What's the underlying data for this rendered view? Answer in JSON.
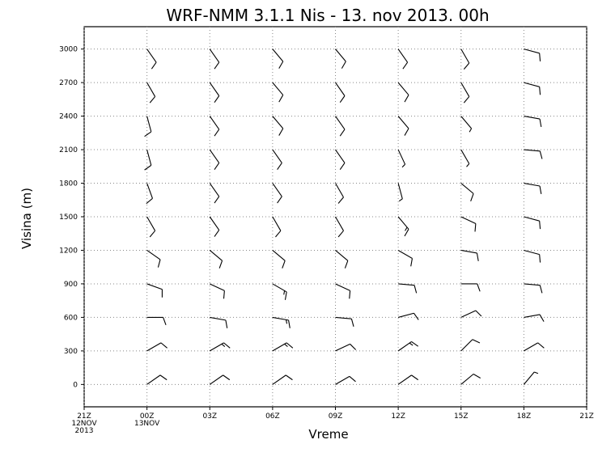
{
  "chart_data": {
    "type": "barb",
    "title": "WRF-NMM 3.1.1 Nis - 13. nov 2013. 00h",
    "x_label": "Vreme",
    "y_label": "Visina (m)",
    "xlim": [
      -3,
      21
    ],
    "ylim": [
      -200,
      3200
    ],
    "xticks": [
      {
        "value": -3,
        "label": "21Z\n12NOV\n2013"
      },
      {
        "value": 0,
        "label": "00Z\n13NOV"
      },
      {
        "value": 3,
        "label": "03Z"
      },
      {
        "value": 6,
        "label": "06Z"
      },
      {
        "value": 9,
        "label": "09Z"
      },
      {
        "value": 12,
        "label": "12Z"
      },
      {
        "value": 15,
        "label": "15Z"
      },
      {
        "value": 18,
        "label": "18Z"
      },
      {
        "value": 21,
        "label": "21Z"
      }
    ],
    "yticks": [
      0,
      300,
      600,
      900,
      1200,
      1500,
      1800,
      2100,
      2400,
      2700,
      3000
    ],
    "grid": true,
    "levels": [
      0,
      300,
      600,
      900,
      1200,
      1500,
      1800,
      2100,
      2400,
      2700,
      3000
    ],
    "barbs": [
      {
        "x": 0,
        "directions": [
          55,
          60,
          90,
          110,
          125,
          150,
          160,
          165,
          165,
          150,
          145
        ],
        "speeds": [
          10,
          10,
          10,
          10,
          10,
          10,
          10,
          10,
          10,
          10,
          10
        ]
      },
      {
        "x": 3,
        "directions": [
          55,
          60,
          100,
          115,
          130,
          145,
          145,
          145,
          145,
          145,
          145
        ],
        "speeds": [
          10,
          15,
          10,
          10,
          10,
          10,
          10,
          10,
          10,
          10,
          10
        ]
      },
      {
        "x": 6,
        "directions": [
          55,
          60,
          100,
          120,
          130,
          150,
          145,
          145,
          140,
          140,
          140
        ],
        "speeds": [
          10,
          15,
          15,
          15,
          10,
          10,
          10,
          10,
          10,
          10,
          10
        ]
      },
      {
        "x": 9,
        "directions": [
          60,
          65,
          95,
          115,
          130,
          150,
          150,
          145,
          145,
          145,
          140
        ],
        "speeds": [
          10,
          10,
          10,
          10,
          10,
          10,
          10,
          10,
          10,
          10,
          10
        ]
      },
      {
        "x": 12,
        "directions": [
          55,
          55,
          75,
          95,
          120,
          140,
          165,
          155,
          140,
          140,
          145
        ],
        "speeds": [
          10,
          15,
          10,
          10,
          10,
          15,
          5,
          5,
          10,
          10,
          10
        ]
      },
      {
        "x": 15,
        "directions": [
          50,
          45,
          65,
          90,
          100,
          115,
          130,
          150,
          140,
          150,
          150
        ],
        "speeds": [
          10,
          10,
          10,
          10,
          10,
          10,
          10,
          5,
          5,
          10,
          10
        ]
      },
      {
        "x": 18,
        "directions": [
          40,
          60,
          80,
          95,
          105,
          105,
          100,
          95,
          100,
          105,
          105
        ],
        "speeds": [
          5,
          10,
          10,
          10,
          10,
          10,
          10,
          10,
          10,
          10,
          10
        ]
      }
    ]
  }
}
